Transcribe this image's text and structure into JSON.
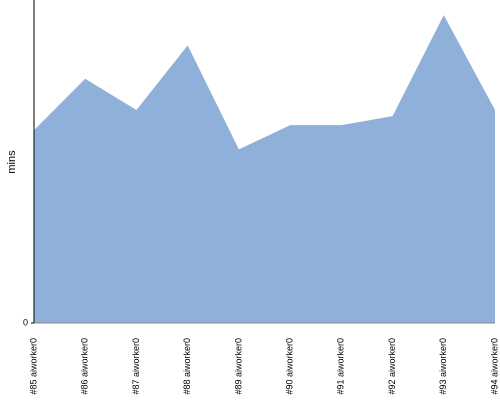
{
  "chart_data": {
    "type": "area",
    "y_label": "mins",
    "categories": [
      "#85 aiworker0",
      "#86 aiworker0",
      "#87 aiworker0",
      "#88 aiworker0",
      "#89 aiworker0",
      "#90 aiworker0",
      "#91 aiworker0",
      "#92 aiworker0",
      "#93 aiworker0",
      "#94 aiworker0"
    ],
    "values": [
      19.1,
      24.2,
      21.1,
      27.5,
      17.2,
      19.6,
      19.6,
      20.5,
      30.5,
      21.1
    ],
    "color": "#8fb1d9",
    "ylim": [
      0,
      32
    ],
    "yticks": [
      0
    ]
  }
}
